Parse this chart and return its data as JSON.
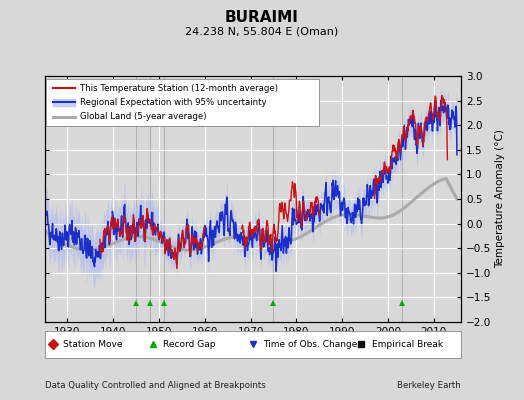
{
  "title": "BURAIMI",
  "subtitle": "24.238 N, 55.804 E (Oman)",
  "ylabel": "Temperature Anomaly (°C)",
  "xlabel_left": "Data Quality Controlled and Aligned at Breakpoints",
  "xlabel_right": "Berkeley Earth",
  "xlim": [
    1925,
    2016
  ],
  "ylim": [
    -2.0,
    3.0
  ],
  "yticks": [
    -2,
    -1.5,
    -1,
    -0.5,
    0,
    0.5,
    1,
    1.5,
    2,
    2.5,
    3
  ],
  "xticks": [
    1930,
    1940,
    1950,
    1960,
    1970,
    1980,
    1990,
    2000,
    2010
  ],
  "bg_color": "#d8d8d8",
  "plot_bg_color": "#d8d8d8",
  "grid_color": "#ffffff",
  "record_gap_years": [
    1945,
    1948,
    1951,
    1975,
    2003
  ],
  "seed": 42
}
